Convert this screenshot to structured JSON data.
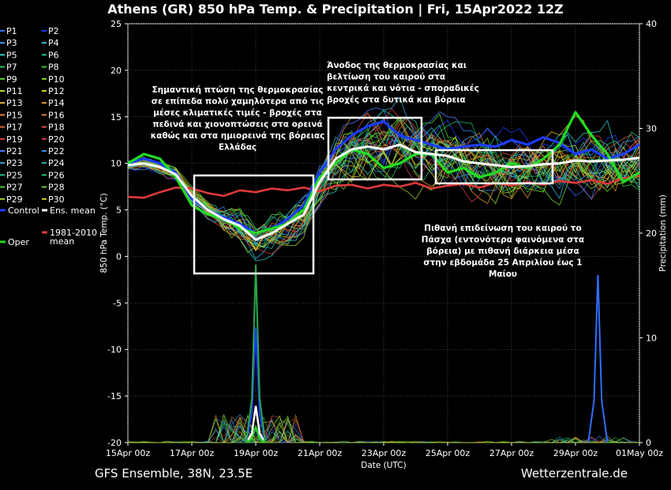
{
  "chart_data": {
    "type": "line",
    "title": "Athens  (GR)  850 hPa Temp. & Precipitation | Fri, 15Apr2022 12Z",
    "ylabel": "850 hPa Temp. (°C)",
    "ylabel_right": "Precipitation (mm)",
    "xlabel": "Date (UTC)",
    "ylim": [
      -20,
      25
    ],
    "ylim_right": [
      0,
      40
    ],
    "yticks": [
      25,
      20,
      15,
      10,
      5,
      0,
      -5,
      -10,
      -15,
      -20
    ],
    "yticks_right": [
      40,
      30,
      20,
      10,
      0
    ],
    "x_range_days": [
      0,
      16
    ],
    "x_ticks": [
      {
        "label": "15Apr 00z",
        "day": 0
      },
      {
        "label": "17Apr 00z",
        "day": 2
      },
      {
        "label": "19Apr 00z",
        "day": 4
      },
      {
        "label": "21Apr 00z",
        "day": 6
      },
      {
        "label": "23Apr 00z",
        "day": 8
      },
      {
        "label": "25Apr 00z",
        "day": 10
      },
      {
        "label": "27Apr 00z",
        "day": 12
      },
      {
        "label": "29Apr 00z",
        "day": 14
      },
      {
        "label": "01May 00z",
        "day": 16
      }
    ],
    "grid": true,
    "legend_position": "left",
    "footer_left": "GFS Ensemble, 38N, 23.5E",
    "footer_right": "Wetterzentrale.de",
    "legend": [
      {
        "label": "P1",
        "color": "#2f6fff"
      },
      {
        "label": "P2",
        "color": "#1e3cff"
      },
      {
        "label": "P3",
        "color": "#3aa0ff"
      },
      {
        "label": "P4",
        "color": "#29c0e8"
      },
      {
        "label": "P5",
        "color": "#25d0c8"
      },
      {
        "label": "P6",
        "color": "#22c38a"
      },
      {
        "label": "P7",
        "color": "#22c45e"
      },
      {
        "label": "P8",
        "color": "#2bd12b"
      },
      {
        "label": "P9",
        "color": "#55d82a"
      },
      {
        "label": "P10",
        "color": "#7edb25"
      },
      {
        "label": "P11",
        "color": "#a7d826"
      },
      {
        "label": "P12",
        "color": "#cfcf2a"
      },
      {
        "label": "P13",
        "color": "#e0b62c"
      },
      {
        "label": "P14",
        "color": "#e69b2a"
      },
      {
        "label": "P15",
        "color": "#e58a32"
      },
      {
        "label": "P16",
        "color": "#e07a36"
      },
      {
        "label": "P17",
        "color": "#e0663a"
      },
      {
        "label": "P18",
        "color": "#e0503a"
      },
      {
        "label": "P19",
        "color": "#d8403f"
      },
      {
        "label": "P20",
        "color": "#cc3a55"
      },
      {
        "label": "P21",
        "color": "#4a78ff"
      },
      {
        "label": "P22",
        "color": "#3b8ce8"
      },
      {
        "label": "P23",
        "color": "#2fa8d8"
      },
      {
        "label": "P24",
        "color": "#26b8b0"
      },
      {
        "label": "P25",
        "color": "#23c28a"
      },
      {
        "label": "P26",
        "color": "#2ec46a"
      },
      {
        "label": "P27",
        "color": "#4fcc3a"
      },
      {
        "label": "P28",
        "color": "#72d02e"
      },
      {
        "label": "P29",
        "color": "#a0d02a"
      },
      {
        "label": "P30",
        "color": "#d0c82a"
      },
      {
        "label": "Control",
        "color": "#1c3cff"
      },
      {
        "label": "Ens. mean",
        "color": "#ffffff"
      },
      {
        "label": "Oper",
        "color": "#22dd22"
      },
      {
        "label": "1981-2010\nmean",
        "color": "#e03a3a"
      }
    ],
    "series": [
      {
        "name": "Ens. mean",
        "x": [
          0,
          0.5,
          1,
          1.5,
          2,
          2.5,
          3,
          3.5,
          4,
          4.5,
          5,
          5.5,
          6,
          6.5,
          7,
          7.5,
          8,
          8.5,
          9,
          9.5,
          10,
          10.5,
          11,
          11.5,
          12,
          12.5,
          13,
          13.5,
          14,
          14.5,
          15,
          15.5,
          16
        ],
        "y": [
          9.8,
          10,
          9.6,
          8.8,
          6.5,
          5,
          4,
          3.3,
          1.8,
          2.5,
          3.5,
          4.5,
          8,
          10.5,
          11.5,
          11.8,
          11.5,
          12,
          11.2,
          11,
          10.8,
          10.2,
          10,
          9.8,
          9.6,
          9.7,
          9.9,
          10,
          10.3,
          10.2,
          10.3,
          10.4,
          10.6
        ]
      },
      {
        "name": "Control",
        "x": [
          0,
          0.5,
          1,
          1.5,
          2,
          2.5,
          3,
          3.5,
          4,
          4.5,
          5,
          5.5,
          6,
          6.5,
          7,
          7.5,
          8,
          8.5,
          9,
          9.5,
          10,
          10.5,
          11,
          11.5,
          12,
          12.5,
          13,
          13.5,
          14,
          14.5,
          15,
          15.5,
          16
        ],
        "y": [
          10,
          10.5,
          10,
          9,
          6.2,
          5,
          4.2,
          3.5,
          2.5,
          3,
          4,
          5.5,
          9,
          11.5,
          13,
          14,
          14.5,
          13,
          12.5,
          12,
          11.5,
          11.8,
          12,
          11.8,
          12.5,
          12,
          12.8,
          12.2,
          11,
          11.5,
          10.5,
          11,
          12
        ]
      },
      {
        "name": "Oper",
        "x": [
          0,
          0.5,
          1,
          1.5,
          2,
          2.5,
          3,
          3.5,
          4,
          4.5,
          5,
          5.5,
          6,
          6.5,
          7,
          7.5,
          8,
          8.5,
          9,
          9.5,
          10,
          10.5,
          11,
          11.5,
          12,
          12.5,
          13,
          13.5,
          14,
          14.5,
          15,
          15.5,
          16
        ],
        "y": [
          10,
          11,
          10.5,
          8.5,
          5.5,
          4.5,
          4,
          3,
          2.5,
          3,
          3.5,
          5,
          8.5,
          10,
          11.5,
          11,
          9.5,
          10,
          11,
          11,
          9,
          9.5,
          8.5,
          9,
          10,
          9.5,
          10.5,
          12,
          15.5,
          13,
          11,
          8,
          9
        ]
      },
      {
        "name": "1981-2010 mean",
        "x": [
          0,
          0.5,
          1,
          1.5,
          2,
          2.5,
          3,
          3.5,
          4,
          4.5,
          5,
          5.5,
          6,
          6.5,
          7,
          7.5,
          8,
          8.5,
          9,
          9.5,
          10,
          10.5,
          11,
          11.5,
          12,
          12.5,
          13,
          13.5,
          14,
          14.5,
          15,
          15.5,
          16
        ],
        "y": [
          6.4,
          6.3,
          6.9,
          7.4,
          7.3,
          6.8,
          6.5,
          7.1,
          6.9,
          7.3,
          7.1,
          7.4,
          7,
          7.6,
          7.7,
          7.3,
          7.7,
          7.5,
          7.9,
          7.3,
          7.6,
          7.8,
          7.4,
          7.9,
          7.6,
          8,
          7.7,
          8.1,
          7.9,
          8.2,
          7.8,
          8.4,
          8.7
        ]
      }
    ],
    "precip_spikes": [
      {
        "name": "Ens. mean precipitation",
        "day": 4.0,
        "mm": 3.5
      },
      {
        "name": "Control precipitation",
        "day": 4.0,
        "mm": 11
      },
      {
        "name": "Oper precipitation",
        "day": 4.0,
        "mm": 1.5
      },
      {
        "name": "Member peak precipitation",
        "day": 4.0,
        "mm": 17
      },
      {
        "name": "Member peak precipitation (late)",
        "day": 14.7,
        "mm": 16
      }
    ],
    "annotations": [
      {
        "id": "drop",
        "lines": [
          "Σημαντική πτώση της θερμοκρασίας",
          "σε επίπεδα πολύ χαμηλότερα από τις",
          "μέσες κλιματικές τιμές - βροχές στα",
          "πεδινά και χιονοπτώσεις στα ορεινά",
          "καθώς και στα ημιορεινά της βόρειας",
          "Ελλάδας"
        ]
      },
      {
        "id": "rise",
        "lines": [
          "Άνοδος της θερμοκρασίας και",
          "βελτίωση του καιρού στα",
          "κεντρικά και νότια - σποραδικές",
          "βροχές στα δυτικά και βόρεια"
        ]
      },
      {
        "id": "worsen",
        "lines": [
          "Πιθανή επιδείνωση του καιρού το",
          "Πάσχα (εντονότερα φαινόμενα στα",
          "βόρεια) με πιθανή διάρκεια μέσα",
          "στην εβδομάδα 25 Απριλίου έως 1",
          "Μαίου"
        ]
      }
    ]
  }
}
